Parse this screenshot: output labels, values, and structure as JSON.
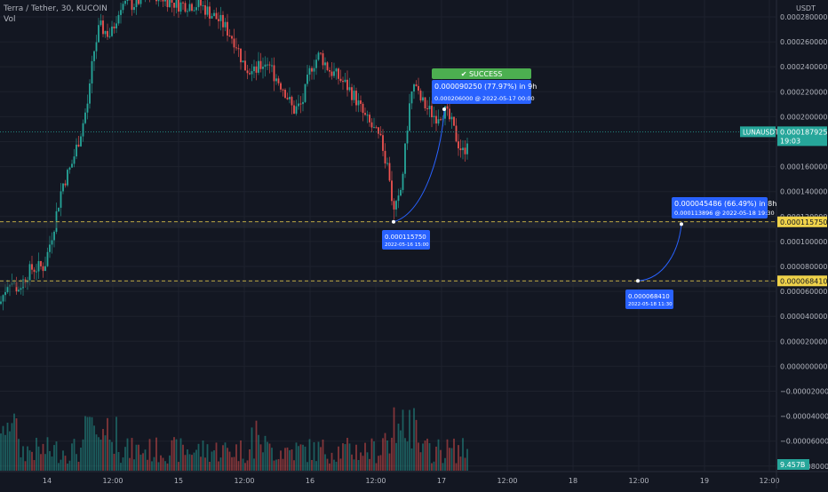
{
  "header": {
    "title": "Terra / Tether, 30, KUCOIN",
    "volume_label": "Vol"
  },
  "chart_data": {
    "type": "candlestick",
    "y_axis": {
      "currency": "USDT",
      "ylim": [
        -9e-05,
        0.00028
      ],
      "tick_labels": [
        "0.000280000",
        "0.000260000",
        "0.000240000",
        "0.000220000",
        "0.000200000",
        "0.000180000",
        "0.000160000",
        "0.000140000",
        "0.000120000",
        "0.000100000",
        "0.000080000",
        "0.000060000",
        "0.000040000",
        "0.000020000",
        "0.000000000",
        "−0.000020000",
        "−0.000040000",
        "−0.000060000",
        "−0.000080000"
      ]
    },
    "x_axis": {
      "tick_labels": [
        "14",
        "12:00",
        "15",
        "12:00",
        "16",
        "12:00",
        "17",
        "12:00",
        "18",
        "12:00",
        "19",
        "12:00"
      ]
    },
    "last_price": {
      "symbol": "LUNAUSDT",
      "value": "0.000187925",
      "countdown": "19:03"
    },
    "volume_readout": "9.457B",
    "horizontal_levels": [
      {
        "value": 0.00011575,
        "label": "0.000115750",
        "color": "#f0d34a"
      },
      {
        "value": 6.841e-05,
        "label": "0.000068410",
        "color": "#f0d34a"
      }
    ],
    "annotations": {
      "success_badge": "✔ SUCCESS",
      "projection_1": {
        "line1": "0.000090250 (77.97%) in 9h",
        "line2": "0.000206000 @ 2022-05-17  00:00"
      },
      "anchor_1": {
        "line1": "0.000115750",
        "line2": "2022-05-16 15:00"
      },
      "projection_2": {
        "line1": "0.000045486 (66.49%) in 8h",
        "line2": "0.000113896 @ 2022-05-18  19:30"
      },
      "anchor_2": {
        "line1": "0.000068410",
        "line2": "2022-05-18 11:30"
      }
    },
    "colors": {
      "up": "#26a69a",
      "down": "#ef5350",
      "background": "#131722",
      "grid": "#1e222d",
      "accent": "#2962ff",
      "success": "#4caf50",
      "level": "#f0d34a"
    }
  }
}
